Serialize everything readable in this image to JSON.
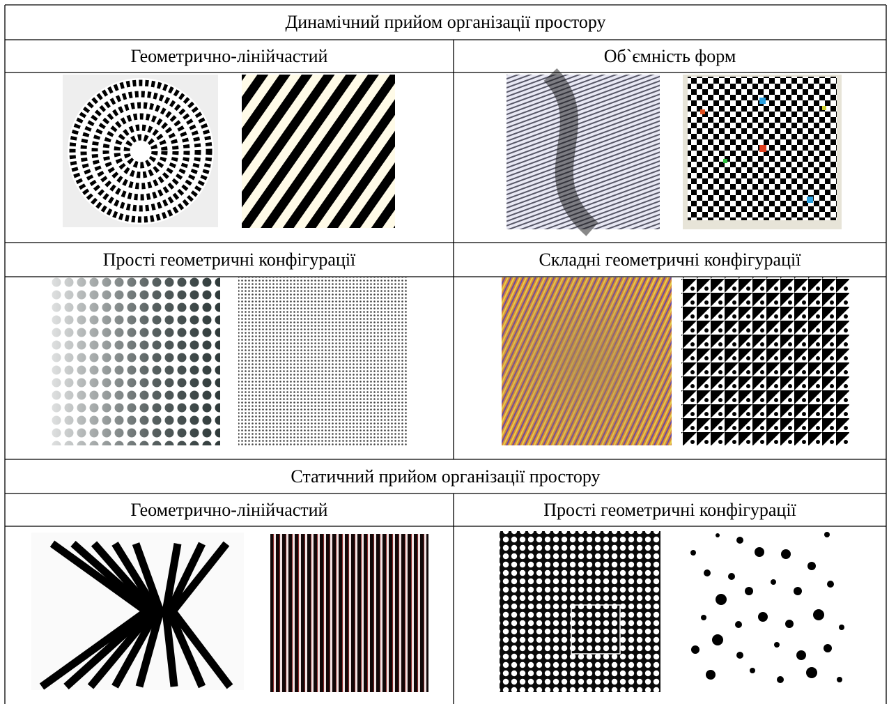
{
  "table": {
    "rows": [
      [
        "Динамічний прийом організації простору"
      ],
      [
        "Геометрично-лінійчастий",
        "Об`ємність форм"
      ],
      [
        "Прості геометричні конфігурації",
        "Складні геометричні конфігурації"
      ],
      [
        "Статичний прийом організації простору"
      ],
      [
        "Геометрично-лінійчастий",
        "Прості геометричні конфігурації"
      ]
    ]
  }
}
